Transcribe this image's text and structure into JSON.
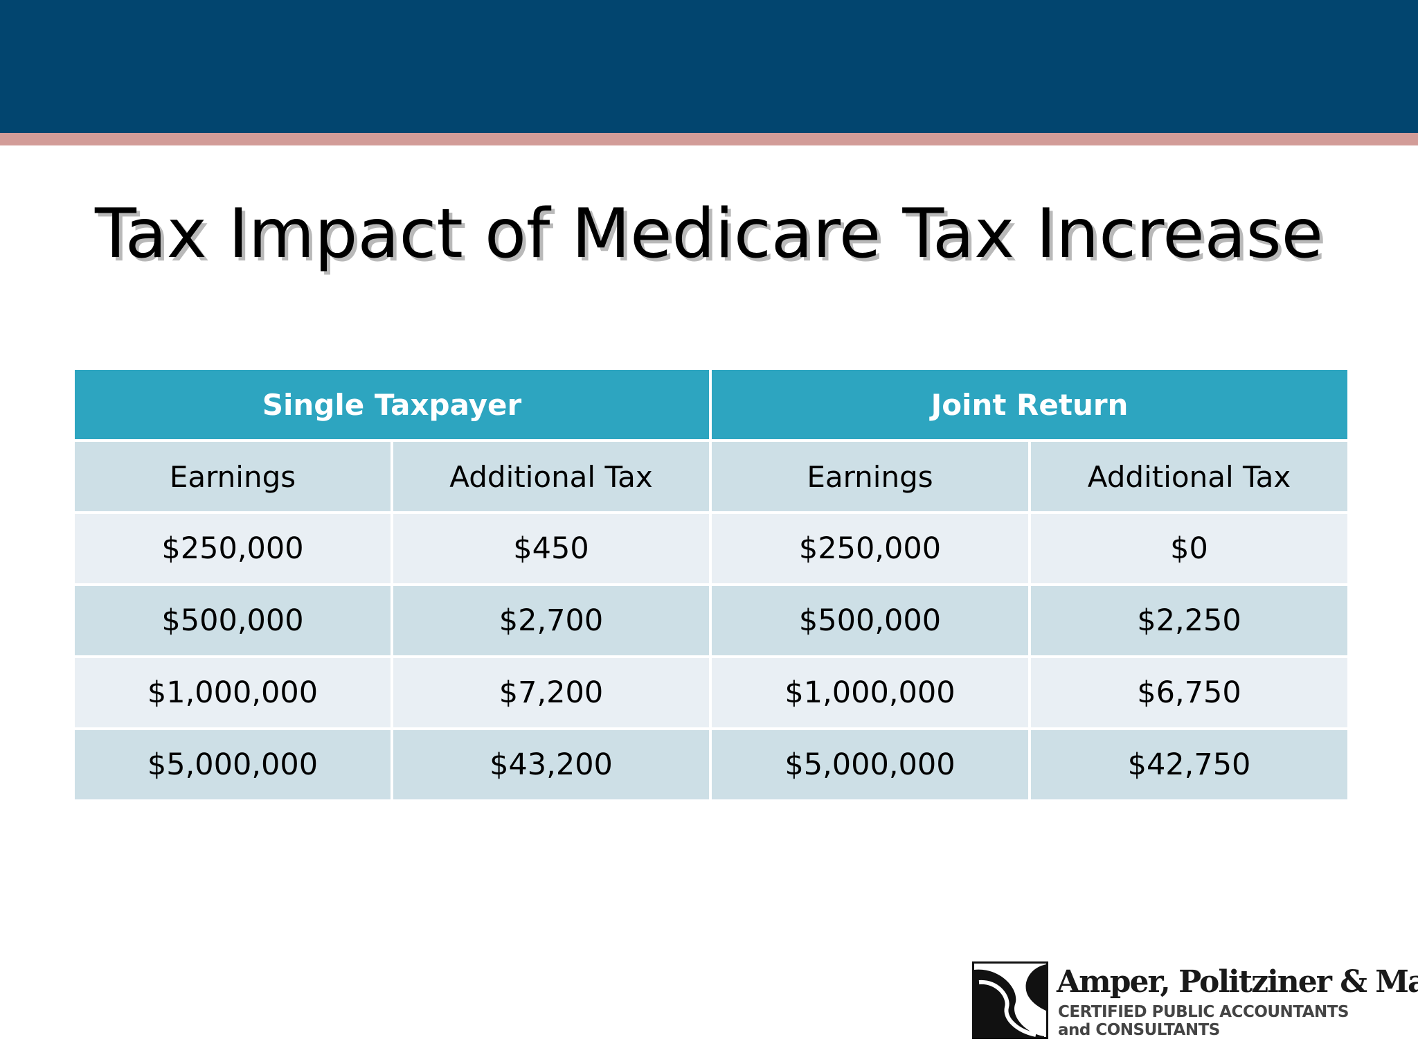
{
  "slide": {
    "title": "Tax Impact of Medicare Tax Increase"
  },
  "colors": {
    "banner": "#02456f",
    "accent_stripe": "#d29c98",
    "table_header": "#2da5c0",
    "row_dark": "#cddfe6",
    "row_light": "#e9eff4"
  },
  "table": {
    "groups": [
      "Single Taxpayer",
      "Joint Return"
    ],
    "columns": [
      "Earnings",
      "Additional Tax",
      "Earnings",
      "Additional Tax"
    ],
    "rows": [
      [
        "$250,000",
        "$450",
        "$250,000",
        "$0"
      ],
      [
        "$500,000",
        "$2,700",
        "$500,000",
        "$2,250"
      ],
      [
        "$1,000,000",
        "$7,200",
        "$1,000,000",
        "$6,750"
      ],
      [
        "$5,000,000",
        "$43,200",
        "$5,000,000",
        "$42,750"
      ]
    ]
  },
  "logo": {
    "icon": "firm-logo-mark-icon",
    "name": "Amper, Politziner & Mattia",
    "tagline_1": "CERTIFIED PUBLIC ACCOUNTANTS",
    "tagline_2": "and CONSULTANTS"
  }
}
